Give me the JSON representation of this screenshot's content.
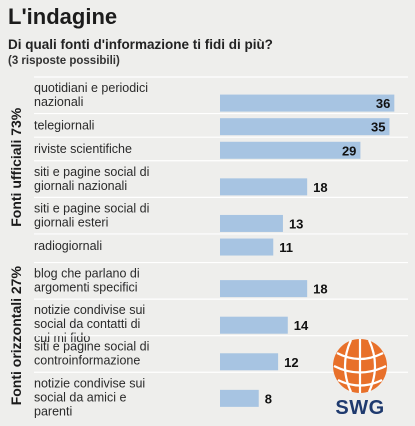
{
  "header": {
    "title": "L'indagine",
    "question": "Di quali fonti d'informazione ti fidi di più?",
    "note": "(3 risposte possibili)"
  },
  "chart_data": {
    "type": "bar",
    "orientation": "horizontal",
    "xlim": [
      0,
      38
    ],
    "colors": {
      "bar": "#a7c4e2",
      "divider": "#ffffff"
    },
    "groups": [
      {
        "label": "Fonti ufficiali 73%",
        "items": [
          {
            "label": "quotidiani e periodici nazionali",
            "value": 36
          },
          {
            "label": "telegiornali",
            "value": 35
          },
          {
            "label": "riviste scientifiche",
            "value": 29
          },
          {
            "label": "siti e pagine social di giornali nazionali",
            "value": 18
          },
          {
            "label": "siti e pagine social di giornali esteri",
            "value": 13
          },
          {
            "label": "radiogiornali",
            "value": 11
          }
        ]
      },
      {
        "label": "Fonti orizzontali 27%",
        "items": [
          {
            "label": "blog che parlano di argomenti specifici",
            "value": 18
          },
          {
            "label": "notizie condivise sui social da contatti di cui mi fido",
            "value": 14
          },
          {
            "label": "siti e pagine social di controinformazione",
            "value": 12
          },
          {
            "label": "notizie condivise sui social da amici e parenti",
            "value": 8
          }
        ]
      }
    ]
  },
  "logo": {
    "text": "SWG",
    "icon": "globe-icon"
  }
}
